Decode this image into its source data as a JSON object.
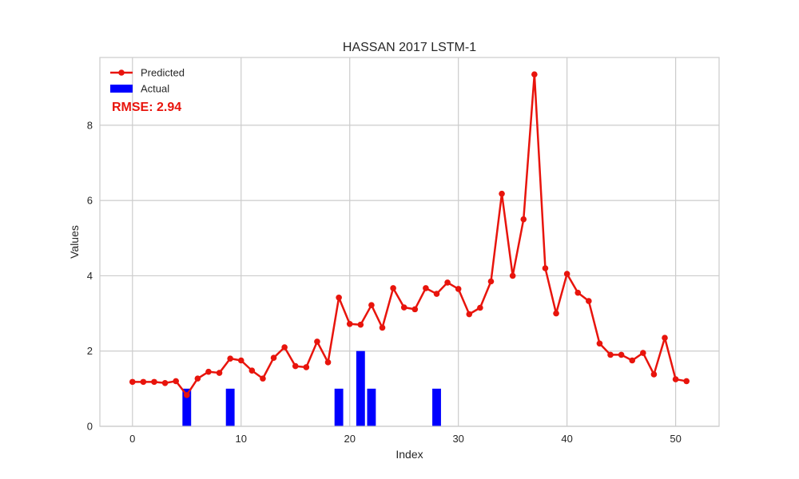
{
  "chart_data": {
    "type": "line",
    "title": "HASSAN 2017 LSTM-1",
    "xlabel": "Index",
    "ylabel": "Values",
    "xlim": [
      -3,
      54
    ],
    "ylim": [
      0,
      9.8
    ],
    "xticks": [
      0,
      10,
      20,
      30,
      40,
      50
    ],
    "yticks": [
      0,
      2,
      4,
      6,
      8
    ],
    "grid": true,
    "legend_position": "top-left",
    "annotation": "RMSE: 2.94",
    "annotation_color": "#e8140c",
    "series": [
      {
        "name": "Predicted",
        "type": "line",
        "marker": "circle",
        "color": "#e8140c",
        "x": [
          0,
          1,
          2,
          3,
          4,
          5,
          6,
          7,
          8,
          9,
          10,
          11,
          12,
          13,
          14,
          15,
          16,
          17,
          18,
          19,
          20,
          21,
          22,
          23,
          24,
          25,
          26,
          27,
          28,
          29,
          30,
          31,
          32,
          33,
          34,
          35,
          36,
          37,
          38,
          39,
          40,
          41,
          42,
          43,
          44,
          45,
          46,
          47,
          48,
          49,
          50,
          51
        ],
        "values": [
          1.18,
          1.18,
          1.18,
          1.15,
          1.2,
          0.83,
          1.27,
          1.45,
          1.42,
          1.8,
          1.75,
          1.48,
          1.27,
          1.82,
          2.1,
          1.6,
          1.57,
          2.25,
          1.7,
          3.42,
          2.72,
          2.7,
          3.22,
          2.62,
          3.67,
          3.16,
          3.11,
          3.67,
          3.52,
          3.82,
          3.65,
          2.98,
          3.15,
          3.85,
          6.18,
          4.0,
          5.5,
          9.35,
          4.2,
          3.0,
          4.05,
          3.55,
          3.33,
          2.2,
          1.9,
          1.9,
          1.75,
          1.95,
          1.38,
          2.35,
          1.25,
          1.2
        ]
      },
      {
        "name": "Actual",
        "type": "bar",
        "color": "#0000ff",
        "x": [
          0,
          1,
          2,
          3,
          4,
          5,
          6,
          7,
          8,
          9,
          10,
          11,
          12,
          13,
          14,
          15,
          16,
          17,
          18,
          19,
          20,
          21,
          22,
          23,
          24,
          25,
          26,
          27,
          28,
          29,
          30,
          31,
          32,
          33,
          34,
          35,
          36,
          37,
          38,
          39,
          40,
          41,
          42,
          43,
          44,
          45,
          46,
          47,
          48,
          49,
          50,
          51
        ],
        "values": [
          0,
          0,
          0,
          0,
          0,
          1,
          0,
          0,
          0,
          1,
          0,
          0,
          0,
          0,
          0,
          0,
          0,
          0,
          0,
          1,
          0,
          2,
          1,
          0,
          0,
          0,
          0,
          0,
          1,
          0,
          0,
          0,
          0,
          0,
          0,
          0,
          0,
          0,
          0,
          0,
          0,
          0,
          0,
          0,
          0,
          0,
          0,
          0,
          0,
          0,
          0,
          0
        ]
      }
    ]
  }
}
